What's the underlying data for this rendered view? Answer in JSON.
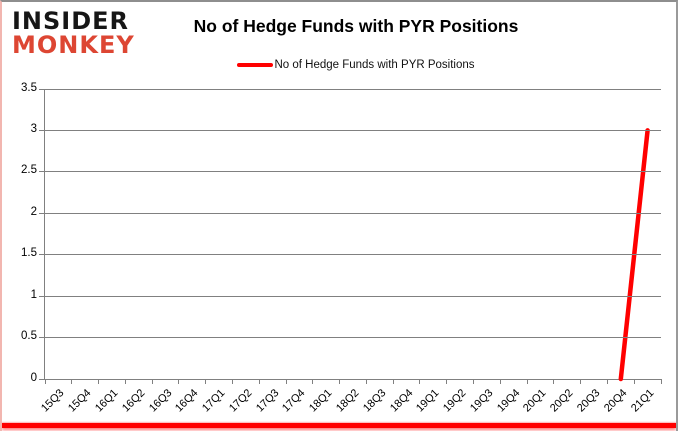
{
  "brand": {
    "line1": "INSIDER",
    "line2": "MONKEY",
    "line1_color": "#161616",
    "line2_color": "#dd4633"
  },
  "title": "No of Hedge Funds with PYR Positions",
  "legend": {
    "label": "No of Hedge Funds with PYR Positions",
    "swatch_color": "#ff0000"
  },
  "chart_data": {
    "type": "line",
    "title": "No of Hedge Funds with PYR Positions",
    "categories": [
      "15Q3",
      "15Q4",
      "16Q1",
      "16Q2",
      "16Q3",
      "16Q4",
      "17Q1",
      "17Q2",
      "17Q3",
      "17Q4",
      "18Q1",
      "18Q2",
      "18Q3",
      "18Q4",
      "19Q1",
      "19Q2",
      "19Q3",
      "19Q4",
      "20Q1",
      "20Q2",
      "20Q3",
      "20Q4",
      "21Q1"
    ],
    "series": [
      {
        "name": "No of Hedge Funds with PYR Positions",
        "color": "#ff0000",
        "values": [
          null,
          null,
          null,
          null,
          null,
          null,
          null,
          null,
          null,
          null,
          null,
          null,
          null,
          null,
          null,
          null,
          null,
          null,
          null,
          null,
          null,
          0,
          3
        ]
      }
    ],
    "xlabel": "",
    "ylabel": "",
    "ylim": [
      0,
      3.5
    ],
    "yticks": [
      0,
      0.5,
      1,
      1.5,
      2,
      2.5,
      3,
      3.5
    ],
    "grid": true,
    "legend_position": "top"
  },
  "colors": {
    "grid": "#808080",
    "axis": "#808080",
    "line": "#ff0000",
    "bottom_bar": "#ff0000"
  }
}
